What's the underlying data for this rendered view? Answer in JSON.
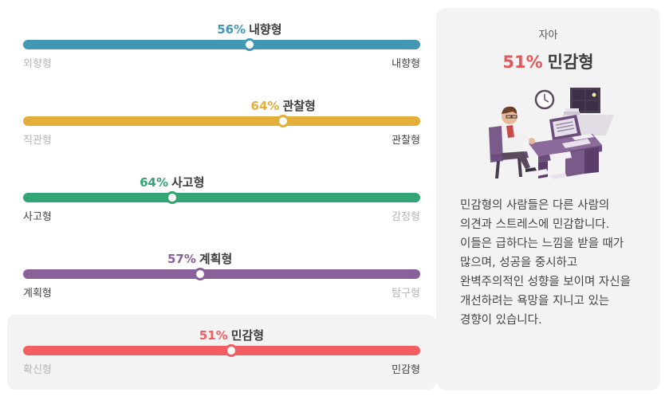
{
  "traits": [
    {
      "pct": "56%",
      "name": "내향형",
      "left": "외향형",
      "right": "내향형",
      "color": "#4298b4",
      "value": 0.57,
      "dim": "left"
    },
    {
      "pct": "64%",
      "name": "관찰형",
      "left": "직관형",
      "right": "관찰형",
      "color": "#e4ae3a",
      "value": 0.655,
      "dim": "left"
    },
    {
      "pct": "64%",
      "name": "사고형",
      "left": "사고형",
      "right": "감정형",
      "color": "#33a474",
      "value": 0.375,
      "dim": "right"
    },
    {
      "pct": "57%",
      "name": "계획형",
      "left": "계획형",
      "right": "탐구형",
      "color": "#88619a",
      "value": 0.445,
      "dim": "right"
    },
    {
      "pct": "51%",
      "name": "민감형",
      "left": "확신형",
      "right": "민감형",
      "color": "#f25e62",
      "value": 0.525,
      "dim": "left",
      "selected": true
    }
  ],
  "panel": {
    "category": "자아",
    "pct": "51%",
    "name": "민감형",
    "description": "민감형의 사람들은 다른 사람의 의견과 스트레스에 민감합니다. 이들은 급하다는 느낌을 받을 때가 많으며, 성공을 중시하고 완벽주의적인 성향을 보이며 자신을 개선하려는 욕망을 지니고 있는 경향이 있습니다.",
    "illustration_icon": "person-at-desk-illustration"
  }
}
